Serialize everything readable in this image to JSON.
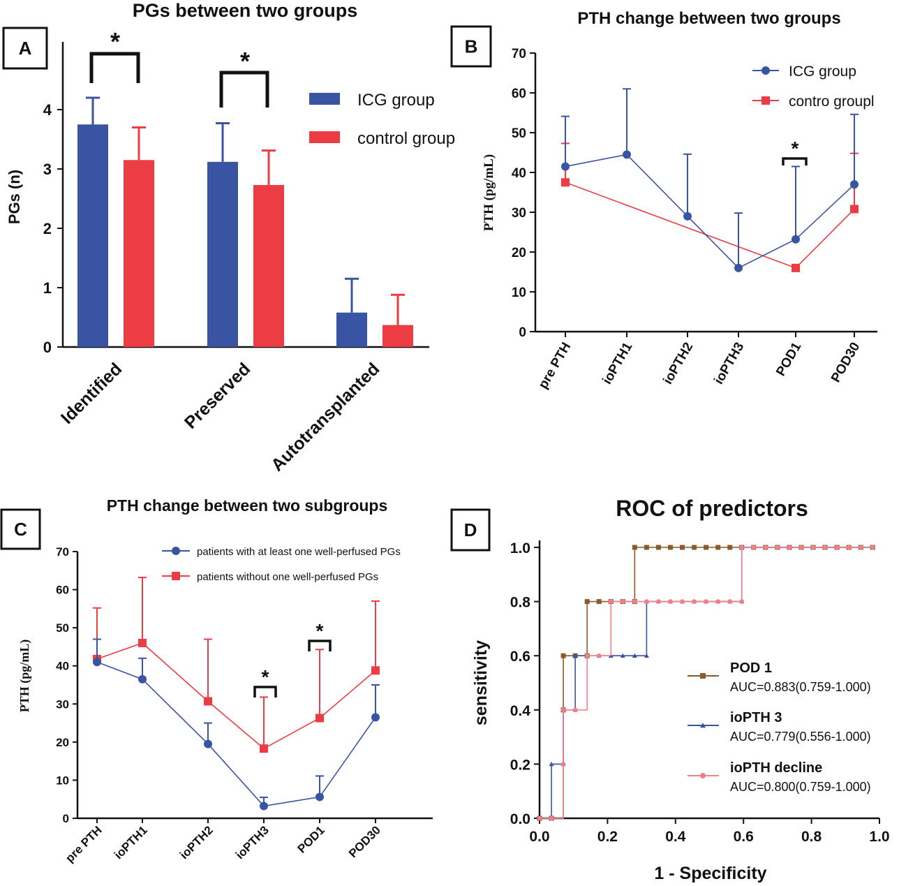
{
  "chart_data": [
    {
      "panel": "A",
      "type": "bar",
      "title": "PGs between two groups",
      "xlabel": "",
      "ylabel": "PGs (n)",
      "ylim": [
        0,
        5
      ],
      "yticks": [
        "0",
        "1",
        "2",
        "3",
        "4"
      ],
      "categories": [
        "Identified",
        "Preserved",
        "Autotransplanted"
      ],
      "legend_position": "top-right",
      "series": [
        {
          "name": "ICG group",
          "color": "#3a54a4",
          "values": [
            3.75,
            3.12,
            0.58
          ],
          "errors": [
            0.45,
            0.65,
            0.57
          ]
        },
        {
          "name": "control group",
          "color": "#ec3c44",
          "values": [
            3.15,
            2.73,
            0.37
          ],
          "errors": [
            0.55,
            0.58,
            0.51
          ]
        }
      ],
      "annotations": [
        {
          "text": "*",
          "category_index": 0
        },
        {
          "text": "*",
          "category_index": 1
        }
      ]
    },
    {
      "panel": "B",
      "type": "line",
      "title": "PTH change between two groups",
      "xlabel": "",
      "ylabel": "PTH (pg/mL)",
      "ylim": [
        0,
        70
      ],
      "yticks": [
        "0",
        "10",
        "20",
        "30",
        "40",
        "50",
        "60",
        "70"
      ],
      "categories": [
        "pre PTH",
        "ioPTH1",
        "ioPTH2",
        "ioPTH3",
        "POD1",
        "POD30"
      ],
      "legend_position": "top-right",
      "series": [
        {
          "name": "ICG group",
          "color": "#3a54a4",
          "marker": "circle",
          "x": [
            0,
            1,
            2,
            3,
            4,
            5
          ],
          "values": [
            41.5,
            44.5,
            29,
            16,
            23.2,
            37
          ],
          "errors": [
            12.6,
            16.5,
            15.6,
            13.8,
            18.3,
            17.6
          ]
        },
        {
          "name": "contro groupl",
          "color": "#ec3c44",
          "marker": "square",
          "x": [
            0,
            4,
            5
          ],
          "values": [
            37.5,
            16,
            30.8
          ],
          "errors": [
            9.8,
            0.3,
            14
          ]
        }
      ],
      "annotations": [
        {
          "text": "*",
          "category_index": 4
        }
      ]
    },
    {
      "panel": "C",
      "type": "line",
      "title": "PTH change between two subgroups",
      "xlabel": "",
      "ylabel": "PTH (pg/mL)",
      "ylim": [
        0,
        70
      ],
      "yticks": [
        "0",
        "10",
        "20",
        "30",
        "40",
        "50",
        "60",
        "70"
      ],
      "categories": [
        "pre PTH",
        "ioPTH1",
        "ioPTH2",
        "ioPTH3",
        "POD1",
        "POD30"
      ],
      "legend_position": "top-right",
      "series": [
        {
          "name": "patients with at least one well-perfused PGs",
          "color": "#3a54a4",
          "marker": "circle",
          "x": [
            0,
            1,
            2,
            3,
            4,
            5
          ],
          "values": [
            41,
            36.5,
            19.5,
            3.2,
            5.6,
            26.5
          ],
          "errors": [
            6,
            5.5,
            5.5,
            2.3,
            5.5,
            8.5
          ]
        },
        {
          "name": "patients without one well-perfused PGs",
          "color": "#ec3c44",
          "marker": "square",
          "x": [
            0,
            1,
            2,
            3,
            4,
            5
          ],
          "values": [
            41.8,
            46,
            30.7,
            18.3,
            26.3,
            38.8
          ],
          "errors": [
            13.4,
            17.2,
            16.3,
            13.5,
            18,
            18.2
          ]
        }
      ],
      "annotations": [
        {
          "text": "*",
          "category_index": 3
        },
        {
          "text": "*",
          "category_index": 4
        }
      ]
    },
    {
      "panel": "D",
      "type": "line",
      "title": "ROC of predictors",
      "xlabel": "1 - Specificity",
      "ylabel": "sensitivity",
      "xlim": [
        0,
        1
      ],
      "ylim": [
        0,
        1
      ],
      "xticks": [
        "0.0",
        "0.2",
        "0.4",
        "0.6",
        "0.8",
        "1.0"
      ],
      "yticks": [
        "0.0",
        "0.2",
        "0.4",
        "0.6",
        "0.8",
        "1.0"
      ],
      "legend_position": "bottom-right",
      "series": [
        {
          "name": "POD 1",
          "auc": "AUC=0.883(0.759-1.000)",
          "color": "#8b5a2b",
          "marker": "square",
          "x": [
            0,
            0.035,
            0.07,
            0.07,
            0.105,
            0.14,
            0.14,
            0.175,
            0.21,
            0.245,
            0.28,
            0.28,
            0.315,
            0.35,
            0.385,
            0.42,
            0.455,
            0.49,
            0.525,
            0.56,
            0.595,
            0.63,
            0.665,
            0.7,
            0.735,
            0.77,
            0.805,
            0.84,
            0.875,
            0.91,
            0.945,
            0.98
          ],
          "y": [
            0,
            0,
            0.4,
            0.6,
            0.6,
            0.6,
            0.8,
            0.8,
            0.8,
            0.8,
            0.8,
            1,
            1,
            1,
            1,
            1,
            1,
            1,
            1,
            1,
            1,
            1,
            1,
            1,
            1,
            1,
            1,
            1,
            1,
            1,
            1,
            1
          ]
        },
        {
          "name": "ioPTH 3",
          "auc": "AUC=0.779(0.556-1.000)",
          "color": "#3a54a4",
          "marker": "triangle",
          "x": [
            0,
            0.035,
            0.035,
            0.07,
            0.07,
            0.105,
            0.105,
            0.14,
            0.175,
            0.21,
            0.245,
            0.28,
            0.315,
            0.315,
            0.35,
            0.385,
            0.42,
            0.455,
            0.49,
            0.525,
            0.56,
            0.595,
            0.595,
            0.63,
            0.665,
            0.7,
            0.735,
            0.77,
            0.805,
            0.84,
            0.875,
            0.91,
            0.945,
            0.98
          ],
          "y": [
            0,
            0,
            0.2,
            0.2,
            0.4,
            0.4,
            0.6,
            0.6,
            0.6,
            0.6,
            0.6,
            0.6,
            0.6,
            0.8,
            0.8,
            0.8,
            0.8,
            0.8,
            0.8,
            0.8,
            0.8,
            0.8,
            1,
            1,
            1,
            1,
            1,
            1,
            1,
            1,
            1,
            1,
            1,
            1
          ]
        },
        {
          "name": "ioPTH decline",
          "auc": "AUC=0.800(0.759-1.000)",
          "color": "#f07f8a",
          "marker": "circle",
          "x": [
            0,
            0.035,
            0.07,
            0.07,
            0.105,
            0.14,
            0.175,
            0.21,
            0.245,
            0.28,
            0.315,
            0.35,
            0.385,
            0.42,
            0.455,
            0.49,
            0.525,
            0.56,
            0.595,
            0.595,
            0.63,
            0.665,
            0.7,
            0.735,
            0.77,
            0.805,
            0.84,
            0.875,
            0.91,
            0.945,
            0.98
          ],
          "y": [
            0,
            0,
            0.2,
            0.4,
            0.4,
            0.6,
            0.6,
            0.8,
            0.8,
            0.8,
            0.8,
            0.8,
            0.8,
            0.8,
            0.8,
            0.8,
            0.8,
            0.8,
            0.8,
            1,
            1,
            1,
            1,
            1,
            1,
            1,
            1,
            1,
            1,
            1,
            1
          ]
        }
      ]
    }
  ]
}
